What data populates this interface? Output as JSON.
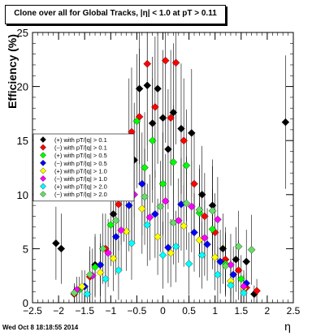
{
  "chart_data": {
    "type": "scatter",
    "title": "Clone  over all for Global Tracks, |η| < 1.0 at pT > 0.11",
    "xlabel": "η",
    "ylabel": "Efficiency (%)",
    "xlim": [
      -2.5,
      2.5
    ],
    "ylim": [
      0,
      25
    ],
    "xticks": [
      -2.5,
      -2,
      -1.5,
      -1,
      -0.5,
      0,
      0.5,
      1,
      1.5,
      2,
      2.5
    ],
    "yticks": [
      0,
      5,
      10,
      15,
      20,
      25
    ],
    "xtick_labels": [
      "−2.5",
      "−2",
      "−1.5",
      "−1",
      "−0.5",
      "0",
      "0.5",
      "1",
      "1.5",
      "2",
      "2.5"
    ],
    "ytick_labels": [
      "0",
      "5",
      "10",
      "15",
      "20",
      "25"
    ],
    "legend_position": "left",
    "grid": false,
    "series": [
      {
        "name": "(+) with pT/|q| > 0.1",
        "color": "#000000",
        "symbol": "diamond",
        "points": [
          [
            -2.05,
            5.5
          ],
          [
            -1.95,
            5.0
          ],
          [
            -1.3,
            3.5
          ],
          [
            -0.95,
            8.2
          ],
          [
            -0.8,
            9.8
          ],
          [
            -0.65,
            15.0
          ],
          [
            -0.55,
            13.2
          ],
          [
            -0.45,
            19.8
          ],
          [
            -0.3,
            20.1
          ],
          [
            -0.2,
            16.6
          ],
          [
            -0.1,
            19.8
          ],
          [
            0.0,
            17.1
          ],
          [
            0.1,
            14.2
          ],
          [
            0.2,
            17.6
          ],
          [
            0.35,
            16.1
          ],
          [
            0.55,
            15.7
          ],
          [
            0.75,
            10.0
          ],
          [
            0.95,
            9.0
          ],
          [
            1.15,
            5.0
          ],
          [
            1.4,
            4.0
          ],
          [
            1.6,
            3.8
          ],
          [
            1.75,
            0.8
          ],
          [
            2.35,
            16.7
          ]
        ]
      },
      {
        "name": "(−) with pT/|q| > 0.1",
        "color": "#ff0000",
        "symbol": "diamond",
        "points": [
          [
            -1.7,
            0.8
          ],
          [
            -1.4,
            2.4
          ],
          [
            -1.1,
            5.0
          ],
          [
            -0.85,
            9.1
          ],
          [
            -0.6,
            15.8
          ],
          [
            -0.45,
            17.2
          ],
          [
            -0.3,
            22.1
          ],
          [
            -0.15,
            18.1
          ],
          [
            0.05,
            22.4
          ],
          [
            0.15,
            17.1
          ],
          [
            0.25,
            22.2
          ],
          [
            0.4,
            15.0
          ],
          [
            0.6,
            11.0
          ],
          [
            0.8,
            8.0
          ],
          [
            1.0,
            6.5
          ],
          [
            1.2,
            4.0
          ],
          [
            1.45,
            3.0
          ],
          [
            1.6,
            1.4
          ],
          [
            1.8,
            1.1
          ]
        ]
      },
      {
        "name": "(+) with pT/|q| > 0.5",
        "color": "#00ff00",
        "symbol": "diamond",
        "points": [
          [
            -1.6,
            1.2
          ],
          [
            -1.3,
            3.3
          ],
          [
            -1.0,
            7.2
          ],
          [
            -0.75,
            10.2
          ],
          [
            -0.5,
            16.8
          ],
          [
            -0.35,
            12.5
          ],
          [
            -0.2,
            15.0
          ],
          [
            0.0,
            11.0
          ],
          [
            0.2,
            13.0
          ],
          [
            0.45,
            12.7
          ],
          [
            0.7,
            8.3
          ],
          [
            0.95,
            6.8
          ],
          [
            1.2,
            3.6
          ],
          [
            1.5,
            2.2
          ]
        ]
      },
      {
        "name": "(−) with pT/|q| > 0.5",
        "color": "#0000ff",
        "symbol": "diamond",
        "points": [
          [
            -1.5,
            1.5
          ],
          [
            -1.2,
            3.5
          ],
          [
            -0.9,
            6.1
          ],
          [
            -0.65,
            9.0
          ],
          [
            -0.4,
            11.0
          ],
          [
            -0.15,
            8.2
          ],
          [
            0.1,
            5.1
          ],
          [
            0.35,
            9.1
          ],
          [
            0.6,
            6.5
          ],
          [
            0.85,
            5.4
          ],
          [
            1.1,
            3.8
          ],
          [
            1.35,
            2.6
          ],
          [
            1.6,
            1.8
          ]
        ]
      },
      {
        "name": "(+) with pT/|q| > 1.0",
        "color": "#ffff00",
        "symbol": "diamond",
        "points": [
          [
            -1.55,
            1.5
          ],
          [
            -1.2,
            2.8
          ],
          [
            -0.95,
            4.1
          ],
          [
            -0.7,
            6.6
          ],
          [
            -0.4,
            8.7
          ],
          [
            -0.1,
            6.1
          ],
          [
            0.15,
            4.6
          ],
          [
            0.4,
            7.1
          ],
          [
            0.7,
            5.8
          ],
          [
            1.0,
            4.2
          ],
          [
            1.3,
            2.0
          ],
          [
            1.55,
            1.3
          ]
        ]
      },
      {
        "name": "(−) with pT/|q| > 1.0",
        "color": "#ff00ff",
        "symbol": "diamond",
        "points": [
          [
            -1.65,
            1.2
          ],
          [
            -1.35,
            2.5
          ],
          [
            -1.05,
            4.6
          ],
          [
            -0.8,
            6.7
          ],
          [
            -0.55,
            10.0
          ],
          [
            -0.25,
            7.9
          ],
          [
            0.05,
            9.4
          ],
          [
            0.3,
            7.6
          ],
          [
            0.55,
            8.9
          ],
          [
            0.8,
            6.0
          ],
          [
            1.05,
            7.7
          ],
          [
            1.3,
            3.5
          ],
          [
            1.55,
            1.5
          ]
        ]
      },
      {
        "name": "(+) with pT/|q| > 2.0",
        "color": "#00ffff",
        "symbol": "diamond",
        "points": [
          [
            -1.45,
            0.8
          ],
          [
            -1.1,
            2.2
          ],
          [
            -0.85,
            3.0
          ],
          [
            -0.6,
            5.5
          ],
          [
            -0.3,
            7.2
          ],
          [
            0.0,
            4.4
          ],
          [
            0.25,
            5.2
          ],
          [
            0.5,
            3.6
          ],
          [
            0.75,
            4.4
          ],
          [
            1.05,
            2.6
          ],
          [
            1.3,
            1.6
          ],
          [
            1.55,
            0.9
          ]
        ]
      },
      {
        "name": "(−) with pT/|q| > 2.0",
        "color": "#66dd66",
        "symbol": "diamond",
        "points": [
          [
            -1.7,
            0.9
          ],
          [
            -1.4,
            2.6
          ],
          [
            -1.15,
            5.0
          ],
          [
            -0.9,
            7.6
          ],
          [
            -0.6,
            10.0
          ],
          [
            -0.35,
            9.8
          ],
          [
            -0.05,
            8.9
          ],
          [
            0.2,
            7.4
          ],
          [
            0.45,
            9.2
          ],
          [
            0.7,
            8.6
          ],
          [
            0.95,
            8.5
          ],
          [
            1.2,
            3.4
          ],
          [
            1.45,
            5.2
          ],
          [
            1.7,
            4.9
          ]
        ]
      }
    ]
  },
  "footer": {
    "timestamp": "Wed Oct  8 18:18:55 2014"
  }
}
